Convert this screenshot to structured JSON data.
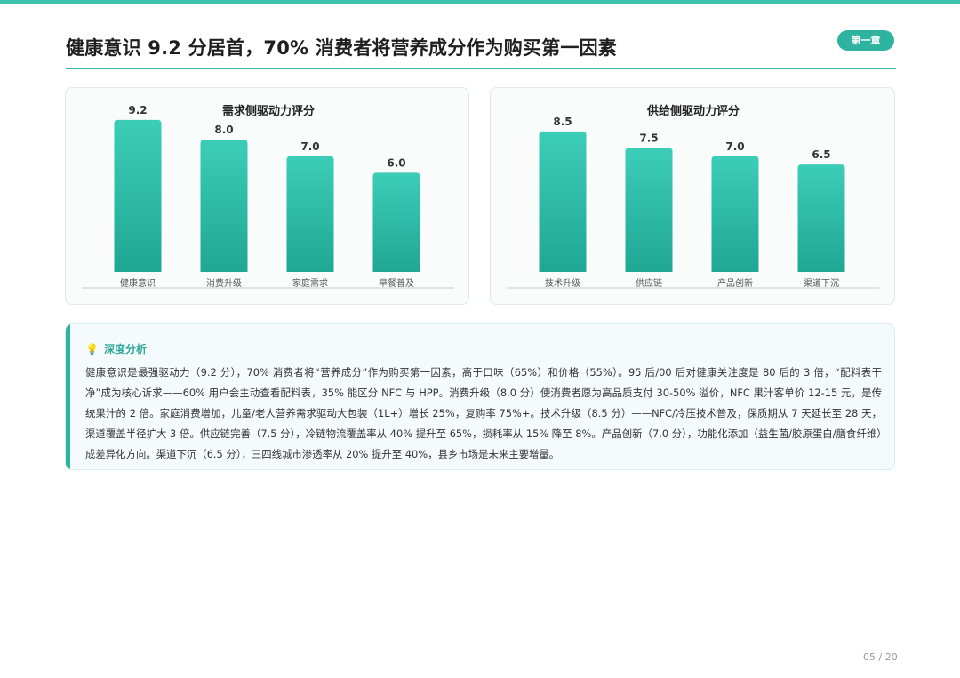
{
  "header": {
    "title": "健康意识 9.2 分居首，70% 消费者将营养成分作为购买第一因素",
    "chapter_badge": "第一章"
  },
  "colors": {
    "accent": "#2fb3a1",
    "bar_top": "#3ccdb8",
    "bar_bottom": "#1fa794"
  },
  "chart_data": [
    {
      "type": "bar",
      "title": "需求侧驱动力评分",
      "categories": [
        "健康意识",
        "消费升级",
        "家庭需求",
        "早餐普及"
      ],
      "values": [
        9.2,
        8.0,
        7.0,
        6.0
      ],
      "data_labels": [
        "9.2",
        "8.0",
        "7.0",
        "6.0"
      ],
      "ylim": [
        0,
        10
      ],
      "grid": false,
      "xlabel": "",
      "ylabel": ""
    },
    {
      "type": "bar",
      "title": "供给侧驱动力评分",
      "categories": [
        "技术升级",
        "供应链",
        "产品创新",
        "渠道下沉"
      ],
      "values": [
        8.5,
        7.5,
        7.0,
        6.5
      ],
      "data_labels": [
        "8.5",
        "7.5",
        "7.0",
        "6.5"
      ],
      "ylim": [
        0,
        10
      ],
      "grid": false,
      "xlabel": "",
      "ylabel": ""
    }
  ],
  "analysis": {
    "icon": "lightbulb-icon",
    "heading": "深度分析",
    "text": "健康意识是最强驱动力（9.2 分），70% 消费者将“营养成分”作为购买第一因素，高于口味（65%）和价格（55%）。95 后/00 后对健康关注度是 80 后的 3 倍，“配料表干净”成为核心诉求——60% 用户会主动查看配料表，35% 能区分 NFC 与 HPP。消费升级（8.0 分）使消费者愿为高品质支付 30-50% 溢价，NFC 果汁客单价 12-15 元，是传统果汁的 2 倍。家庭消费增加，儿童/老人营养需求驱动大包装（1L+）增长 25%，复购率 75%+。技术升级（8.5 分）——NFC/冷压技术普及，保质期从 7 天延长至 28 天，渠道覆盖半径扩大 3 倍。供应链完善（7.5 分），冷链物流覆盖率从 40% 提升至 65%，损耗率从 15% 降至 8%。产品创新（7.0 分），功能化添加（益生菌/胶原蛋白/膳食纤维）成差异化方向。渠道下沉（6.5 分），三四线城市渗透率从 20% 提升至 40%，县乡市场是未来主要增量。"
  },
  "footer": {
    "page_number": "05 / 20"
  }
}
